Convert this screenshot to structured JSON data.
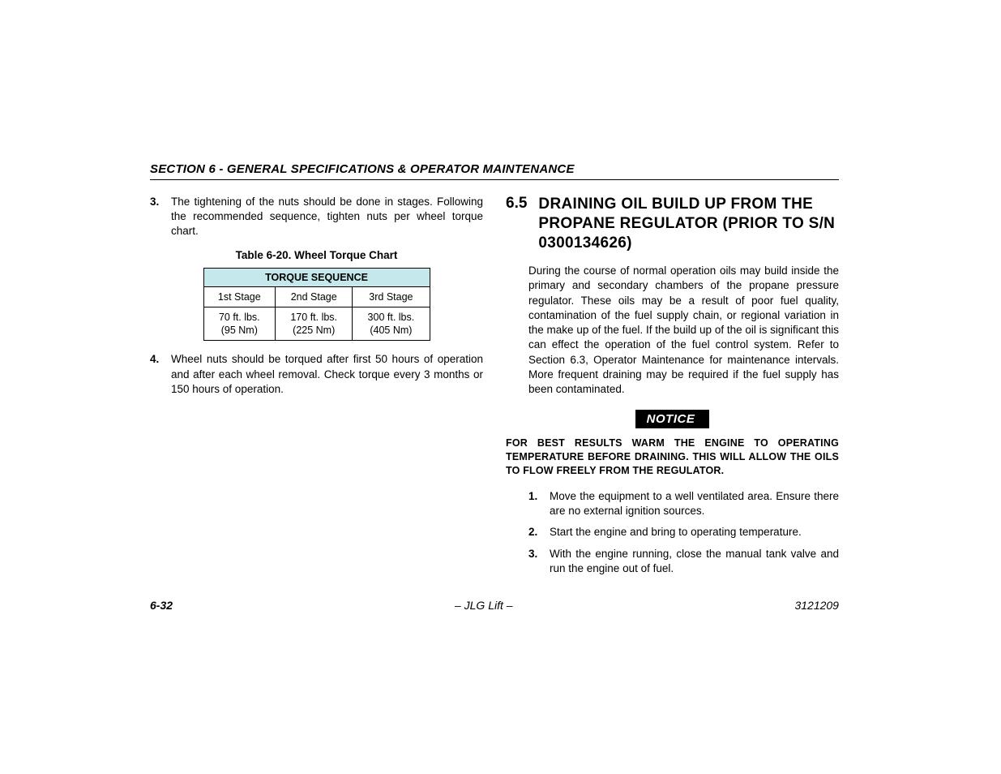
{
  "header": {
    "title": "SECTION 6 - GENERAL SPECIFICATIONS & OPERATOR MAINTENANCE"
  },
  "left": {
    "item3": {
      "num": "3.",
      "text": "The tightening of the nuts should be done in stages. Following the recommended sequence, tighten nuts per wheel torque chart."
    },
    "table": {
      "caption": "Table 6-20. Wheel Torque Chart",
      "header": "TORQUE SEQUENCE",
      "header_bg": "#c4e8ec",
      "columns": [
        "1st Stage",
        "2nd Stage",
        "3rd Stage"
      ],
      "row_ftlbs": [
        "70 ft. lbs.",
        "170 ft. lbs.",
        "300 ft. lbs."
      ],
      "row_nm": [
        "(95 Nm)",
        "(225 Nm)",
        "(405 Nm)"
      ]
    },
    "item4": {
      "num": "4.",
      "text": "Wheel nuts should be torqued after first 50 hours of operation and after each wheel removal. Check torque every 3 months or 150 hours of operation."
    }
  },
  "right": {
    "section_num": "6.5",
    "section_title": "DRAINING OIL BUILD UP FROM THE PROPANE REGULATOR (PRIOR TO S/N 0300134626)",
    "para": "During the course of normal operation oils may build inside the primary and secondary chambers of the propane pressure regulator. These oils may be a result of poor fuel quality, contamination of the fuel supply chain, or regional variation in the make up of the fuel. If the build up of the oil is significant this can effect the operation of the fuel control system. Refer to Section 6.3, Operator Maintenance for maintenance intervals. More frequent draining may be required if the fuel supply has been contaminated.",
    "notice_label": "NOTICE",
    "notice_text": "FOR BEST RESULTS WARM THE ENGINE TO OPERATING TEMPERATURE BEFORE DRAINING. THIS WILL ALLOW THE OILS TO FLOW FREELY FROM THE REGULATOR.",
    "steps": [
      {
        "num": "1.",
        "text": "Move the equipment to a well ventilated area. Ensure there are no external ignition sources."
      },
      {
        "num": "2.",
        "text": "Start the engine and bring to operating temperature."
      },
      {
        "num": "3.",
        "text": "With the engine running, close the manual tank valve and run the engine out of fuel."
      }
    ]
  },
  "footer": {
    "page": "6-32",
    "center": "– JLG Lift –",
    "docnum": "3121209"
  },
  "colors": {
    "text": "#000000",
    "background": "#ffffff",
    "table_header_bg": "#c4e8ec",
    "notice_bg": "#000000",
    "notice_fg": "#ffffff"
  },
  "fonts": {
    "body_size_pt": 10,
    "heading_size_pt": 14,
    "table_size_pt": 9
  }
}
